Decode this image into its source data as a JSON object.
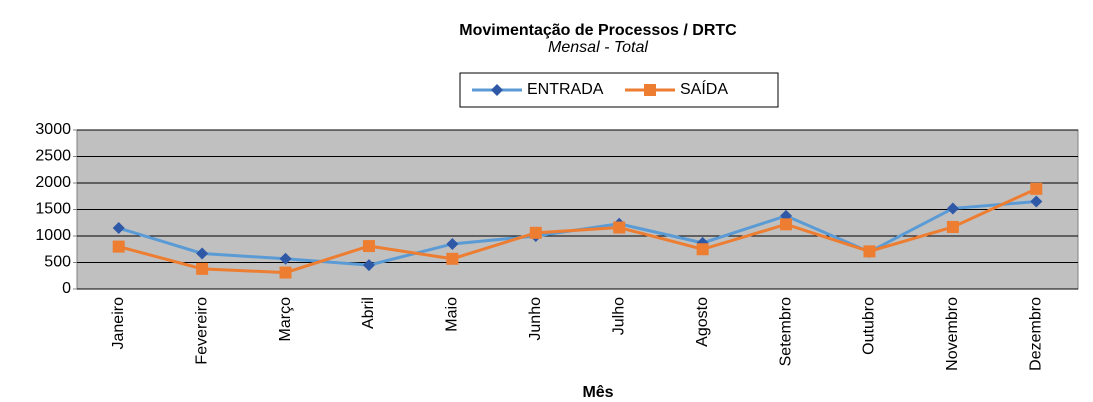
{
  "chart_data": {
    "type": "line",
    "title": "Movimentação de Processos / DRTC",
    "subtitle": "Mensal - Total",
    "x_label": "Mês",
    "categories": [
      "Janeiro",
      "Fevereiro",
      "Março",
      "Abril",
      "Maio",
      "Junho",
      "Julho",
      "Agosto",
      "Setembro",
      "Outubro",
      "Novembro",
      "Dezembro"
    ],
    "series": [
      {
        "name": "ENTRADA",
        "color": "#5b9bd5",
        "marker_color": "#2f58a6",
        "marker": "diamond",
        "values": [
          1150,
          670,
          570,
          450,
          850,
          1000,
          1230,
          870,
          1380,
          700,
          1520,
          1650
        ]
      },
      {
        "name": "SAÍDA",
        "color": "#ed7d31",
        "marker_color": "#ed7d31",
        "marker": "square",
        "values": [
          800,
          380,
          310,
          810,
          570,
          1060,
          1160,
          750,
          1220,
          710,
          1170,
          1890
        ]
      }
    ],
    "ylim": [
      0,
      3000
    ],
    "yticks": [
      0,
      500,
      1000,
      1500,
      2000,
      2500,
      3000
    ],
    "grid": true,
    "legend": "top"
  }
}
